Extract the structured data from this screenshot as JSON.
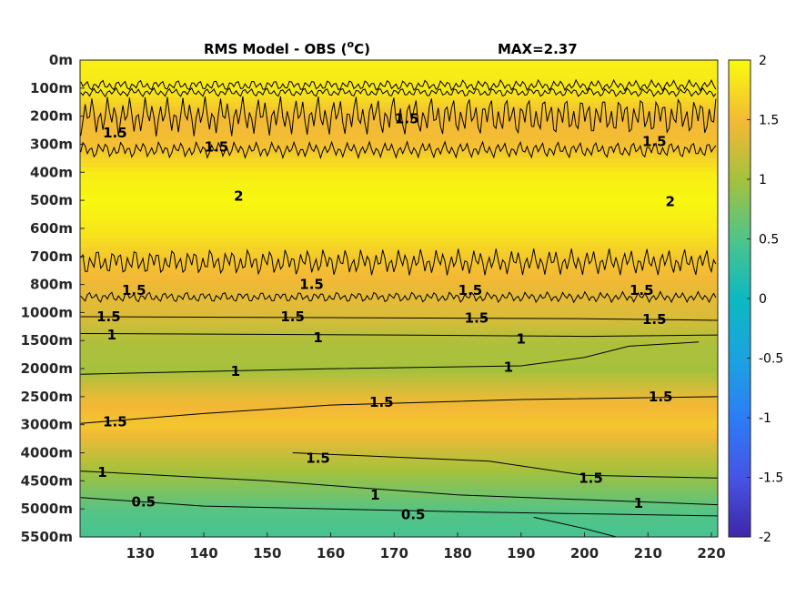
{
  "chart_data": {
    "type": "heatmap",
    "title": "RMS Model - OBS (",
    "title_unit_sup": "o",
    "title_unit_tail": "C)",
    "max_label": "MAX=2.37",
    "x_ticks": [
      130,
      140,
      150,
      160,
      170,
      180,
      190,
      200,
      210,
      220
    ],
    "xlim": [
      120.5,
      221
    ],
    "y_tick_labels": [
      "0m",
      "100m",
      "200m",
      "300m",
      "400m",
      "500m",
      "600m",
      "700m",
      "800m",
      "1000m",
      "1500m",
      "2000m",
      "2500m",
      "3000m",
      "4000m",
      "4500m",
      "5000m",
      "5500m"
    ],
    "colorbar": {
      "ticks": [
        2,
        1.5,
        1,
        0.5,
        0,
        -0.5,
        -1,
        -1.5,
        -2
      ],
      "range": [
        -2,
        2
      ],
      "colormap": "parula"
    },
    "contour_levels": [
      0.5,
      1,
      1.5,
      2
    ],
    "depth_profile": [
      {
        "depth": "0m",
        "value": 1.9
      },
      {
        "depth": "100m",
        "value": 1.85
      },
      {
        "depth": "200m",
        "value": 1.5
      },
      {
        "depth": "300m",
        "value": 1.55
      },
      {
        "depth": "400m",
        "value": 1.9
      },
      {
        "depth": "500m",
        "value": 1.97
      },
      {
        "depth": "600m",
        "value": 1.85
      },
      {
        "depth": "700m",
        "value": 1.6
      },
      {
        "depth": "800m",
        "value": 1.45
      },
      {
        "depth": "1000m",
        "value": 1.35
      },
      {
        "depth": "1500m",
        "value": 1.05
      },
      {
        "depth": "2000m",
        "value": 1.0
      },
      {
        "depth": "2500m",
        "value": 1.45
      },
      {
        "depth": "3000m",
        "value": 1.6
      },
      {
        "depth": "4000m",
        "value": 1.2
      },
      {
        "depth": "4500m",
        "value": 0.85
      },
      {
        "depth": "5000m",
        "value": 0.55
      },
      {
        "depth": "5500m",
        "value": 0.45
      }
    ],
    "contour_labels": [
      {
        "text": "1.5",
        "x": 125,
        "depth_index": 9.15
      },
      {
        "text": "1.5",
        "x": 154,
        "depth_index": 9.15
      },
      {
        "text": "1.5",
        "x": 183,
        "depth_index": 9.2
      },
      {
        "text": "1.5",
        "x": 211,
        "depth_index": 9.25
      },
      {
        "text": "1",
        "x": 125.5,
        "depth_index": 9.8
      },
      {
        "text": "1",
        "x": 158,
        "depth_index": 9.9
      },
      {
        "text": "1",
        "x": 190,
        "depth_index": 9.95
      },
      {
        "text": "1",
        "x": 145,
        "depth_index": 11.1
      },
      {
        "text": "1",
        "x": 188,
        "depth_index": 10.95
      },
      {
        "text": "1.5",
        "x": 126,
        "depth_index": 12.9
      },
      {
        "text": "1.5",
        "x": 168,
        "depth_index": 12.2
      },
      {
        "text": "1.5",
        "x": 212,
        "depth_index": 12.0
      },
      {
        "text": "1.5",
        "x": 158,
        "depth_index": 14.2
      },
      {
        "text": "1.5",
        "x": 201,
        "depth_index": 14.9
      },
      {
        "text": "1",
        "x": 124,
        "depth_index": 14.7
      },
      {
        "text": "1",
        "x": 167,
        "depth_index": 15.5
      },
      {
        "text": "1",
        "x": 208.5,
        "depth_index": 15.8
      },
      {
        "text": "0.5",
        "x": 130.5,
        "depth_index": 15.75
      },
      {
        "text": "0.5",
        "x": 173,
        "depth_index": 16.2
      },
      {
        "text": "1.5",
        "x": 129,
        "depth_index": 8.2
      },
      {
        "text": "1.5",
        "x": 157,
        "depth_index": 8.0
      },
      {
        "text": "1.5",
        "x": 182,
        "depth_index": 8.2
      },
      {
        "text": "1.5",
        "x": 209,
        "depth_index": 8.2
      },
      {
        "text": "1.5",
        "x": 126,
        "depth_index": 2.6
      },
      {
        "text": "1.5",
        "x": 142,
        "depth_index": 3.1
      },
      {
        "text": "1.5",
        "x": 172,
        "depth_index": 2.1
      },
      {
        "text": "1.5",
        "x": 211,
        "depth_index": 2.9
      },
      {
        "text": "2",
        "x": 145.5,
        "depth_index": 4.85
      },
      {
        "text": "2",
        "x": 213.5,
        "depth_index": 5.05
      }
    ]
  }
}
